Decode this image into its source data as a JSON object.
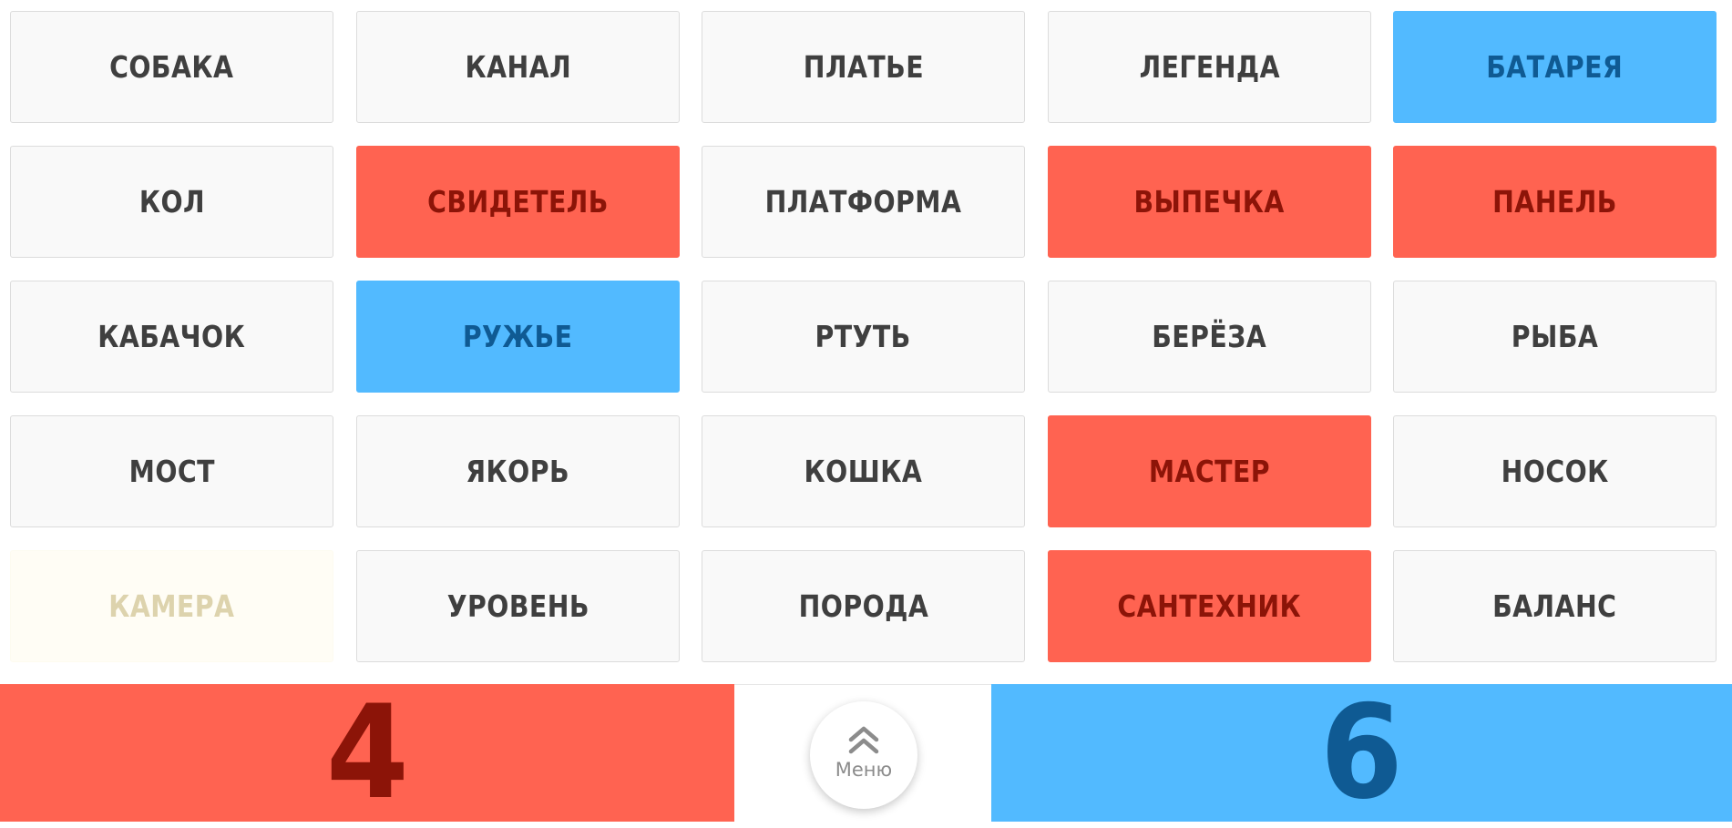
{
  "cards": [
    {
      "word": "СОБАКА",
      "team": "neutral"
    },
    {
      "word": "КАНАЛ",
      "team": "neutral"
    },
    {
      "word": "ПЛАТЬЕ",
      "team": "neutral"
    },
    {
      "word": "ЛЕГЕНДА",
      "team": "neutral"
    },
    {
      "word": "БАТАРЕЯ",
      "team": "blue"
    },
    {
      "word": "КОЛ",
      "team": "neutral"
    },
    {
      "word": "СВИДЕТЕЛЬ",
      "team": "red"
    },
    {
      "word": "ПЛАТФОРМА",
      "team": "neutral"
    },
    {
      "word": "ВЫПЕЧКА",
      "team": "red"
    },
    {
      "word": "ПАНЕЛЬ",
      "team": "red"
    },
    {
      "word": "КАБАЧОК",
      "team": "neutral"
    },
    {
      "word": "РУЖЬЕ",
      "team": "blue"
    },
    {
      "word": "РТУТЬ",
      "team": "neutral"
    },
    {
      "word": "БЕРЁЗА",
      "team": "neutral"
    },
    {
      "word": "РЫБА",
      "team": "neutral"
    },
    {
      "word": "МОСТ",
      "team": "neutral"
    },
    {
      "word": "ЯКОРЬ",
      "team": "neutral"
    },
    {
      "word": "КОШКА",
      "team": "neutral"
    },
    {
      "word": "МАСТЕР",
      "team": "red"
    },
    {
      "word": "НОСОК",
      "team": "neutral"
    },
    {
      "word": "КАМЕРА",
      "team": "assassin"
    },
    {
      "word": "УРОВЕНЬ",
      "team": "neutral"
    },
    {
      "word": "ПОРОДА",
      "team": "neutral"
    },
    {
      "word": "САНТЕХНИК",
      "team": "red"
    },
    {
      "word": "БАЛАНС",
      "team": "neutral"
    }
  ],
  "score": {
    "red": "4",
    "blue": "6"
  },
  "menu": {
    "label": "Меню",
    "icon": "double-chevron-up-icon"
  },
  "colors": {
    "red": "#ff6351",
    "red_text": "#8c1408",
    "blue": "#52baff",
    "blue_text": "#0f5a93",
    "neutral": "#f9f9f9",
    "neutral_text": "#3f3f3f",
    "assassin": "#fffdf5",
    "assassin_text": "#ddd3ad"
  }
}
